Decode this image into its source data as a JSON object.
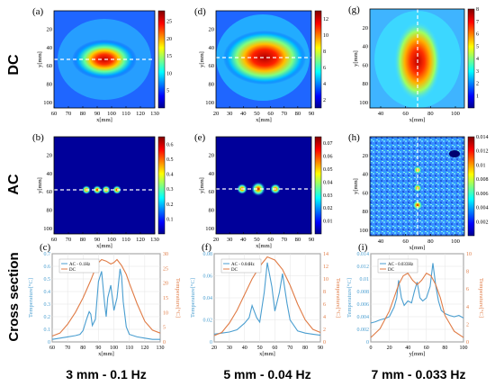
{
  "row_labels": {
    "dc": "DC",
    "ac": "AC",
    "cross": "Cross section"
  },
  "footer": [
    "3 mm - 0.1 Hz",
    "5 mm - 0.04 Hz",
    "7 mm - 0.033 Hz"
  ],
  "chart_data": [
    {
      "type": "heatmap",
      "panel": "(a)",
      "xlabel": "x[mm]",
      "ylabel": "y[mm]",
      "xticks": [
        "60",
        "70",
        "80",
        "90",
        "100",
        "110",
        "120",
        "130"
      ],
      "yticks": [
        "20",
        "40",
        "60",
        "80",
        "100"
      ],
      "colorbar_ticks": [
        "5",
        "10",
        "15",
        "20",
        "25"
      ],
      "colorbar_range": [
        0,
        28
      ]
    },
    {
      "type": "heatmap",
      "panel": "(d)",
      "xlabel": "x[mm]",
      "ylabel": "y[mm]",
      "xticks": [
        "20",
        "30",
        "40",
        "50",
        "60",
        "70",
        "80",
        "90"
      ],
      "yticks": [
        "20",
        "40",
        "60",
        "80",
        "100"
      ],
      "colorbar_ticks": [
        "2",
        "4",
        "6",
        "8",
        "10",
        "12"
      ],
      "colorbar_range": [
        1,
        13
      ]
    },
    {
      "type": "heatmap",
      "panel": "(g)",
      "xlabel": "x[mm]",
      "ylabel": "y[mm]",
      "xticks": [
        "40",
        "60",
        "80",
        "100"
      ],
      "yticks": [
        "20",
        "40",
        "60",
        "80",
        "100"
      ],
      "colorbar_ticks": [
        "1",
        "2",
        "3",
        "4",
        "5",
        "6",
        "7",
        "8"
      ],
      "colorbar_range": [
        0,
        8
      ]
    },
    {
      "type": "heatmap",
      "panel": "(b)",
      "xlabel": "x[mm]",
      "ylabel": "y[mm]",
      "xticks": [
        "60",
        "70",
        "80",
        "90",
        "100",
        "110",
        "120",
        "130"
      ],
      "yticks": [
        "20",
        "40",
        "60",
        "80",
        "100"
      ],
      "colorbar_ticks": [
        "0.1",
        "0.2",
        "0.3",
        "0.4",
        "0.5",
        "0.6"
      ],
      "colorbar_range": [
        0,
        0.65
      ]
    },
    {
      "type": "heatmap",
      "panel": "(e)",
      "xlabel": "x[mm]",
      "ylabel": "y[mm]",
      "xticks": [
        "20",
        "30",
        "40",
        "50",
        "60",
        "70",
        "80",
        "90"
      ],
      "yticks": [
        "20",
        "40",
        "60",
        "80",
        "100"
      ],
      "colorbar_ticks": [
        "0.01",
        "0.02",
        "0.03",
        "0.04",
        "0.05",
        "0.06",
        "0.07"
      ],
      "colorbar_range": [
        0,
        0.075
      ]
    },
    {
      "type": "heatmap",
      "panel": "(h)",
      "xlabel": "x[mm]",
      "ylabel": "y[mm]",
      "xticks": [
        "40",
        "60",
        "80",
        "100"
      ],
      "yticks": [
        "20",
        "40",
        "60",
        "80",
        "100"
      ],
      "colorbar_ticks": [
        "0.002",
        "0.004",
        "0.006",
        "0.008",
        "0.01",
        "0.012",
        "0.014"
      ],
      "colorbar_range": [
        0,
        0.014
      ]
    },
    {
      "type": "line",
      "panel": "(c)",
      "xlabel": "x[mm]",
      "ylabel_left": "Temperature[°C]",
      "ylabel_right": "Temperature[°C]",
      "xlim": [
        60,
        130
      ],
      "ylim_left": [
        0,
        0.7
      ],
      "ylim_right": [
        0,
        30
      ],
      "xticks": [
        "60",
        "70",
        "80",
        "90",
        "100",
        "110",
        "120",
        "130"
      ],
      "yticks_left": [
        "0",
        "0.1",
        "0.2",
        "0.3",
        "0.4",
        "0.5",
        "0.6",
        "0.7"
      ],
      "yticks_right": [
        "0",
        "5",
        "10",
        "15",
        "20",
        "25",
        "30"
      ],
      "series": [
        {
          "name": "AC - 0.1Hz",
          "axis": "left",
          "x": [
            60,
            65,
            70,
            75,
            78,
            80,
            82,
            84,
            85,
            86,
            88,
            90,
            92,
            94,
            95,
            96,
            98,
            100,
            102,
            104,
            105,
            106,
            108,
            110,
            115,
            120,
            125,
            130
          ],
          "y": [
            0.02,
            0.03,
            0.04,
            0.05,
            0.06,
            0.09,
            0.17,
            0.24,
            0.22,
            0.13,
            0.18,
            0.48,
            0.56,
            0.3,
            0.2,
            0.35,
            0.45,
            0.25,
            0.35,
            0.58,
            0.52,
            0.32,
            0.12,
            0.06,
            0.04,
            0.03,
            0.02,
            0.02
          ]
        },
        {
          "name": "DC",
          "axis": "right",
          "x": [
            60,
            65,
            70,
            75,
            80,
            85,
            88,
            90,
            92,
            95,
            98,
            100,
            102,
            105,
            108,
            110,
            115,
            120,
            125,
            130
          ],
          "y": [
            2,
            3,
            6,
            10,
            15,
            21,
            25,
            27,
            28,
            27.5,
            26.5,
            27,
            28,
            26,
            23,
            20,
            13,
            7,
            4,
            3
          ]
        }
      ]
    },
    {
      "type": "line",
      "panel": "(f)",
      "xlabel": "x[mm]",
      "ylabel_left": "Temperature[°C]",
      "ylabel_right": "Temperature[°C]",
      "xlim": [
        20,
        90
      ],
      "ylim_left": [
        0,
        0.08
      ],
      "ylim_right": [
        0,
        14
      ],
      "xticks": [
        "20",
        "30",
        "40",
        "50",
        "60",
        "70",
        "80",
        "90"
      ],
      "yticks_left": [
        "0",
        "0.02",
        "0.04",
        "0.06",
        "0.08"
      ],
      "yticks_right": [
        "0",
        "2",
        "4",
        "6",
        "8",
        "10",
        "12",
        "14"
      ],
      "series": [
        {
          "name": "AC - 0.04Hz",
          "axis": "left",
          "x": [
            20,
            25,
            30,
            35,
            40,
            43,
            45,
            48,
            50,
            53,
            55,
            58,
            60,
            63,
            65,
            68,
            70,
            75,
            80,
            85,
            90
          ],
          "y": [
            0.007,
            0.008,
            0.009,
            0.011,
            0.017,
            0.022,
            0.033,
            0.022,
            0.018,
            0.045,
            0.072,
            0.05,
            0.028,
            0.045,
            0.062,
            0.035,
            0.02,
            0.01,
            0.008,
            0.007,
            0.006
          ]
        },
        {
          "name": "DC",
          "axis": "right",
          "x": [
            20,
            25,
            30,
            35,
            40,
            45,
            50,
            55,
            60,
            65,
            70,
            75,
            80,
            85,
            90
          ],
          "y": [
            1,
            1.5,
            3,
            5,
            7.5,
            10,
            12,
            13.5,
            13,
            11.5,
            9,
            6,
            3.5,
            2,
            1.5
          ]
        }
      ]
    },
    {
      "type": "line",
      "panel": "(i)",
      "xlabel": "y[mm]",
      "ylabel_left": "Temperature[°C]",
      "ylabel_right": "Temperature[°C]",
      "xlim": [
        0,
        100
      ],
      "ylim_left": [
        0,
        0.014
      ],
      "ylim_right": [
        0,
        10
      ],
      "xticks": [
        "0",
        "20",
        "40",
        "60",
        "80",
        "100"
      ],
      "yticks_left": [
        "0",
        "0.002",
        "0.004",
        "0.006",
        "0.008",
        "0.01",
        "0.012",
        "0.014"
      ],
      "yticks_right": [
        "0",
        "2",
        "4",
        "6",
        "8",
        "10"
      ],
      "series": [
        {
          "name": "AC - 0.033Hz",
          "axis": "left",
          "x": [
            0,
            5,
            10,
            15,
            20,
            25,
            28,
            30,
            33,
            36,
            40,
            44,
            47,
            50,
            53,
            56,
            60,
            64,
            67,
            70,
            73,
            76,
            80,
            85,
            90,
            95,
            100
          ],
          "y": [
            0.003,
            0.0032,
            0.0035,
            0.0037,
            0.004,
            0.0055,
            0.007,
            0.0098,
            0.007,
            0.0058,
            0.0065,
            0.0062,
            0.008,
            0.0095,
            0.007,
            0.0065,
            0.007,
            0.0088,
            0.0125,
            0.009,
            0.0065,
            0.005,
            0.0045,
            0.0042,
            0.004,
            0.0042,
            0.0038
          ]
        },
        {
          "name": "DC",
          "axis": "right",
          "x": [
            0,
            10,
            20,
            25,
            30,
            35,
            40,
            45,
            50,
            55,
            60,
            65,
            70,
            75,
            80,
            90,
            100
          ],
          "y": [
            0.5,
            1.5,
            3.5,
            5,
            6.5,
            7.5,
            7.8,
            7,
            6.5,
            7,
            7.8,
            7.5,
            6.5,
            5,
            3,
            1.2,
            0.5
          ]
        }
      ]
    }
  ]
}
